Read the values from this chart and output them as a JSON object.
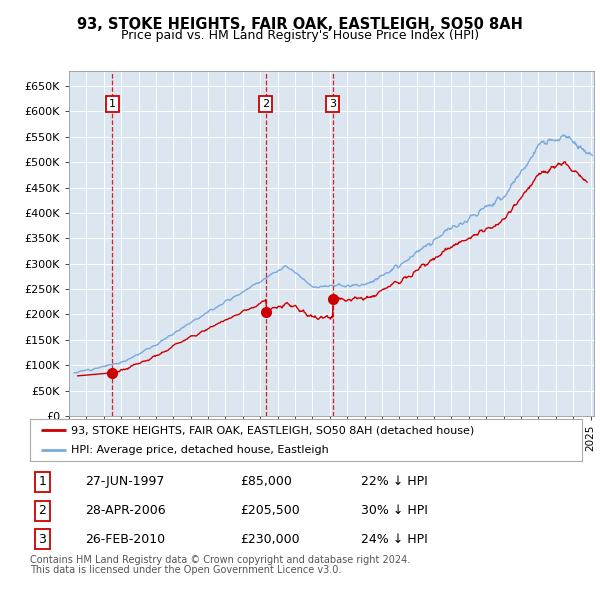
{
  "title1": "93, STOKE HEIGHTS, FAIR OAK, EASTLEIGH, SO50 8AH",
  "title2": "Price paid vs. HM Land Registry's House Price Index (HPI)",
  "ylabel_ticks": [
    "£0",
    "£50K",
    "£100K",
    "£150K",
    "£200K",
    "£250K",
    "£300K",
    "£350K",
    "£400K",
    "£450K",
    "£500K",
    "£550K",
    "£600K",
    "£650K"
  ],
  "ytick_values": [
    0,
    50000,
    100000,
    150000,
    200000,
    250000,
    300000,
    350000,
    400000,
    450000,
    500000,
    550000,
    600000,
    650000
  ],
  "ylim": [
    0,
    680000
  ],
  "xlim_start": 1995.3,
  "xlim_end": 2025.2,
  "sale_dates": [
    1997.49,
    2006.32,
    2010.16
  ],
  "sale_prices": [
    85000,
    205500,
    230000
  ],
  "sale_labels": [
    "1",
    "2",
    "3"
  ],
  "sale_date_strs": [
    "27-JUN-1997",
    "28-APR-2006",
    "26-FEB-2010"
  ],
  "sale_price_strs": [
    "£85,000",
    "£205,500",
    "£230,000"
  ],
  "sale_pct_strs": [
    "22% ↓ HPI",
    "30% ↓ HPI",
    "24% ↓ HPI"
  ],
  "legend_line1": "93, STOKE HEIGHTS, FAIR OAK, EASTLEIGH, SO50 8AH (detached house)",
  "legend_line2": "HPI: Average price, detached house, Eastleigh",
  "footnote1": "Contains HM Land Registry data © Crown copyright and database right 2024.",
  "footnote2": "This data is licensed under the Open Government Licence v3.0.",
  "sold_line_color": "#cc0000",
  "hpi_line_color": "#7aaadd",
  "bg_color": "#dce6f0",
  "grid_color": "#ffffff",
  "box_color": "#cc0000"
}
